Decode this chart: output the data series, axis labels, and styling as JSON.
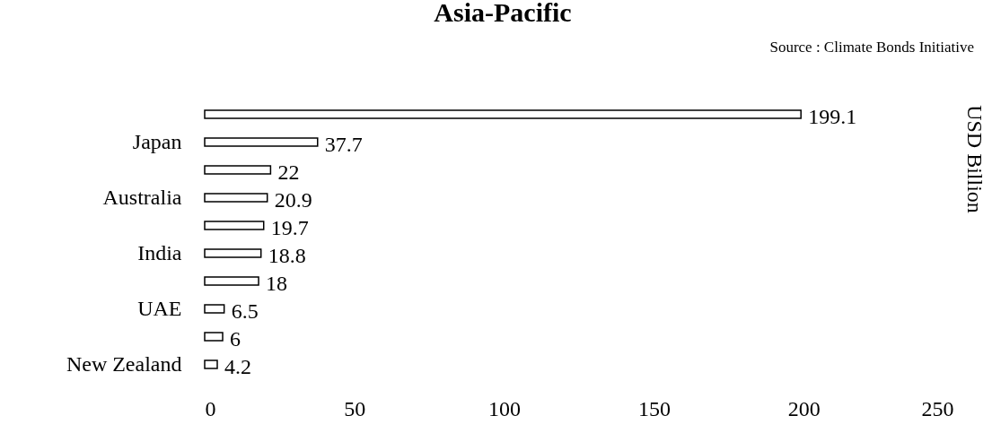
{
  "chart_data": {
    "type": "bar",
    "orientation": "horizontal",
    "title": "Asia-Pacific",
    "ylabel": "USD Billion",
    "annotations": [
      "Source : Climate Bonds Initiative"
    ],
    "categories": [
      null,
      "Japan",
      null,
      "Australia",
      null,
      "India",
      null,
      "UAE",
      null,
      "New Zealand"
    ],
    "values": [
      199.1,
      37.7,
      22,
      20.9,
      19.7,
      18.8,
      18,
      6.5,
      6,
      4.2
    ],
    "color": "#ffffff",
    "xlim": [
      0,
      250
    ],
    "xticks": [
      0,
      50,
      100,
      150,
      200,
      250
    ],
    "data_labels": true
  }
}
